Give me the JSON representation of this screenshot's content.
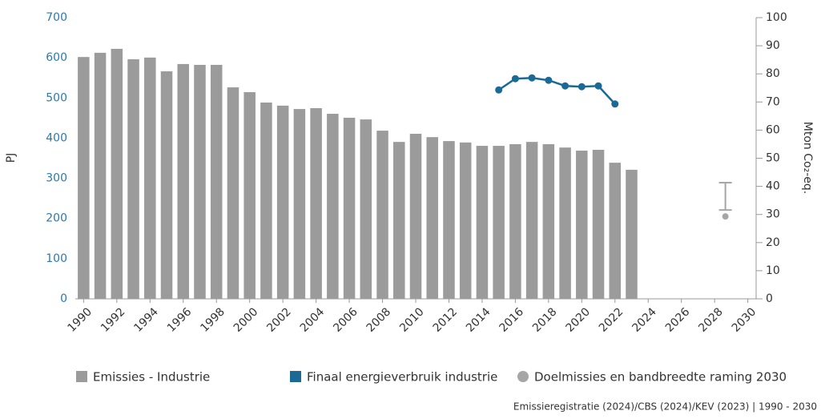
{
  "chart_data": {
    "type": "bar",
    "ylabel": "PJ",
    "y2label": "Mton Co₂-eq.",
    "ylim": [
      0,
      700
    ],
    "yticks": [
      0,
      100,
      200,
      300,
      400,
      500,
      600,
      700
    ],
    "y2lim": [
      0,
      100
    ],
    "y2ticks": [
      0,
      10,
      20,
      30,
      40,
      50,
      60,
      70,
      80,
      90,
      100
    ],
    "xlim": [
      1989.5,
      2030.5
    ],
    "xticks": [
      1990,
      1992,
      1994,
      1996,
      1998,
      2000,
      2002,
      2004,
      2006,
      2008,
      2010,
      2012,
      2014,
      2016,
      2018,
      2020,
      2022,
      2024,
      2026,
      2028,
      2030
    ],
    "grid": false,
    "series": [
      {
        "name": "Emissies - Industrie",
        "type": "bar",
        "axis": "y2",
        "color": "#9b9b9b",
        "x": [
          1990,
          1991,
          1992,
          1993,
          1994,
          1995,
          1996,
          1997,
          1998,
          1999,
          2000,
          2001,
          2002,
          2003,
          2004,
          2005,
          2006,
          2007,
          2008,
          2009,
          2010,
          2011,
          2012,
          2013,
          2014,
          2015,
          2016,
          2017,
          2018,
          2019,
          2020,
          2021,
          2022,
          2023
        ],
        "values": [
          86.0,
          87.5,
          88.9,
          85.2,
          85.8,
          80.9,
          83.5,
          83.2,
          83.2,
          75.2,
          73.5,
          69.8,
          68.7,
          67.5,
          67.8,
          65.8,
          64.4,
          63.8,
          59.8,
          55.8,
          58.7,
          57.5,
          56.1,
          55.6,
          54.4,
          54.4,
          55.0,
          55.8,
          55.0,
          53.8,
          52.7,
          53.0,
          48.4,
          45.9
        ]
      },
      {
        "name": "Finaal energieverbruik industrie",
        "type": "line",
        "axis": "y",
        "color": "#1b6a96",
        "x": [
          2015,
          2016,
          2017,
          2018,
          2019,
          2020,
          2021,
          2022
        ],
        "values": [
          520,
          548,
          550,
          544,
          530,
          528,
          530,
          485
        ]
      },
      {
        "name": "Doelmissies en bandbreedte raming 2030",
        "type": "target",
        "axis": "y2",
        "color": "#a6a6a6",
        "x": [
          2030
        ],
        "values": [
          29.3
        ],
        "range": [
          31.6,
          41.3
        ]
      }
    ],
    "source": "Emissieregistratie (2024)/CBS (2024)/KEV (2023) | 1990 - 2030"
  }
}
